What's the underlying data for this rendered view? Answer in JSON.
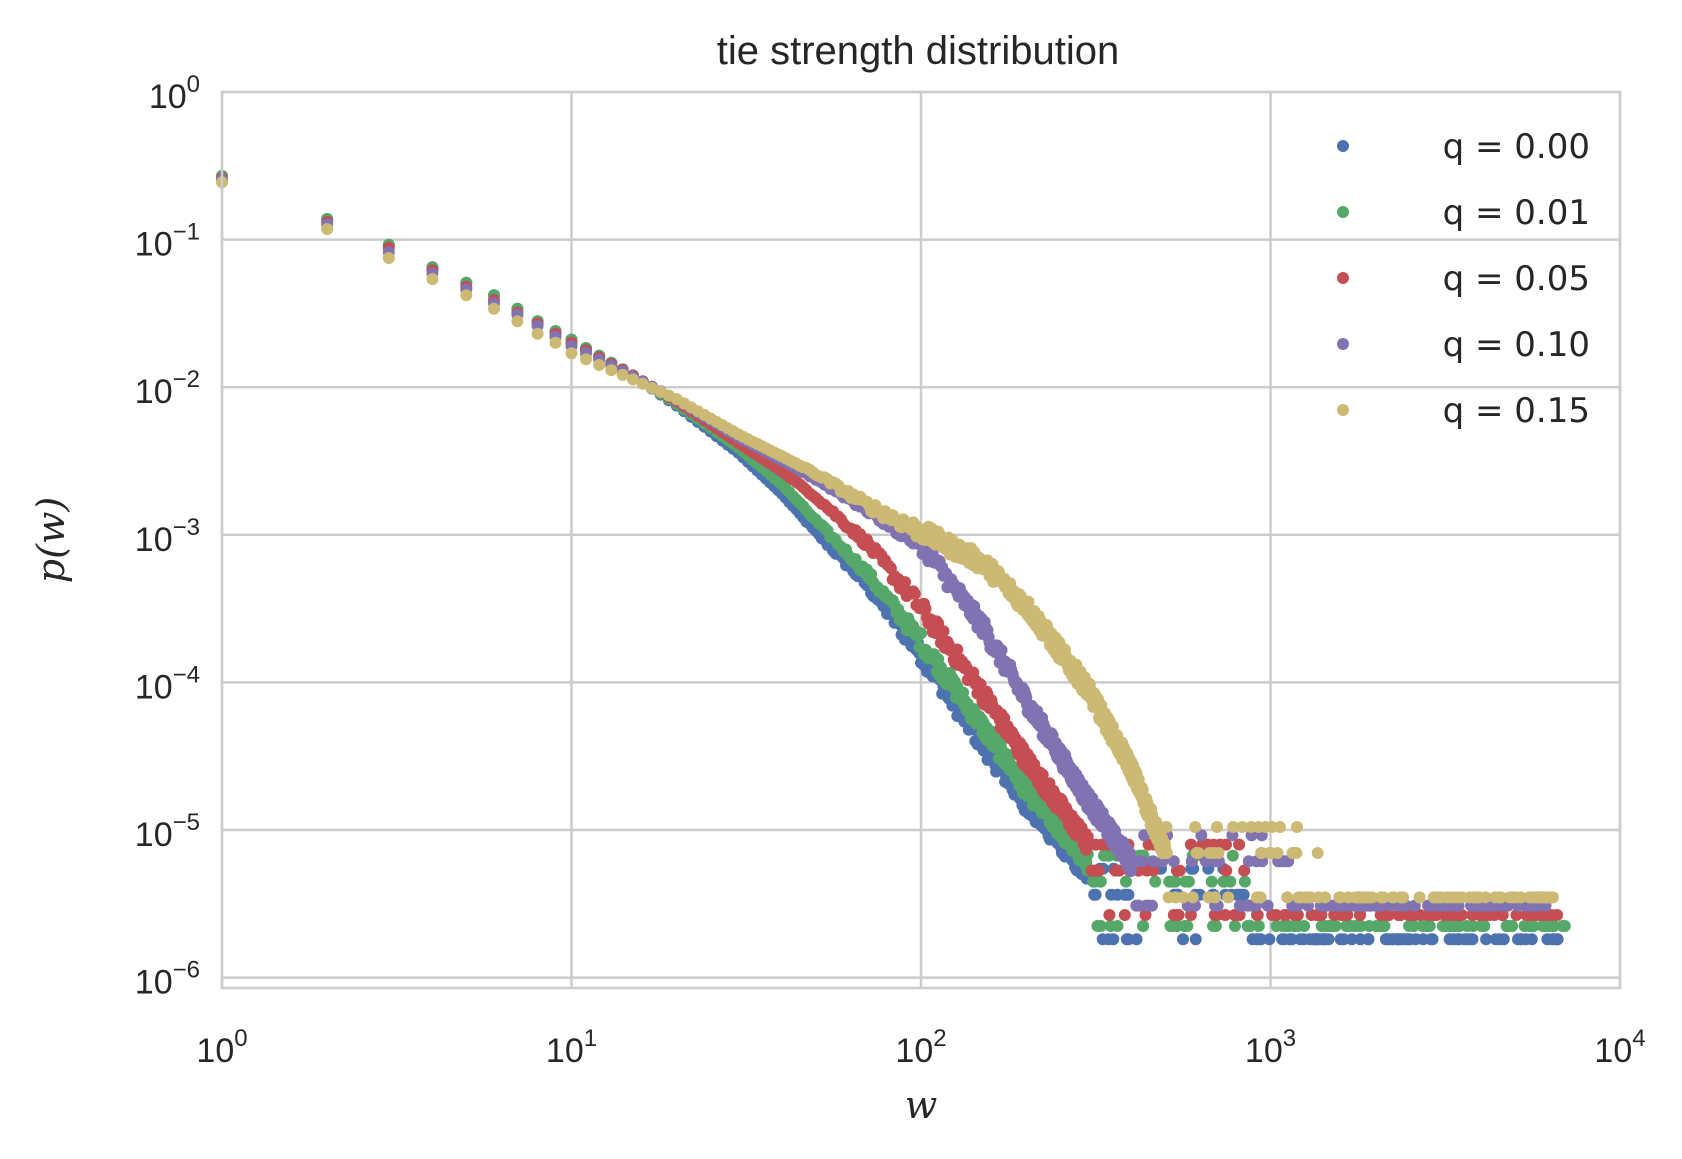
{
  "chart_data": {
    "type": "scatter",
    "title": "tie strength distribution",
    "xlabel": "w",
    "ylabel": "p(w)",
    "xscale": "log",
    "yscale": "log",
    "xlim": [
      1,
      10000
    ],
    "ylim": [
      8.5e-07,
      1
    ],
    "grid": true,
    "legend_position": "top-right",
    "x_ticks": [
      {
        "base": "10",
        "exp": "0"
      },
      {
        "base": "10",
        "exp": "1"
      },
      {
        "base": "10",
        "exp": "2"
      },
      {
        "base": "10",
        "exp": "3"
      },
      {
        "base": "10",
        "exp": "4"
      }
    ],
    "y_ticks": [
      {
        "base": "10",
        "exp": "0"
      },
      {
        "base": "10",
        "exp": "−1"
      },
      {
        "base": "10",
        "exp": "−2"
      },
      {
        "base": "10",
        "exp": "−3"
      },
      {
        "base": "10",
        "exp": "−4"
      },
      {
        "base": "10",
        "exp": "−5"
      },
      {
        "base": "10",
        "exp": "−6"
      }
    ],
    "series": [
      {
        "name": "q = 0.00",
        "color": "#4c72b0",
        "max_w": 7000,
        "points": [
          [
            1,
            0.27
          ],
          [
            2,
            0.138
          ],
          [
            3,
            0.092
          ],
          [
            4,
            0.065
          ],
          [
            5,
            0.051
          ],
          [
            6,
            0.042
          ],
          [
            7,
            0.034
          ],
          [
            8,
            0.028
          ],
          [
            9,
            0.024
          ],
          [
            10,
            0.021
          ],
          [
            15,
            0.012
          ],
          [
            20,
            0.0075
          ],
          [
            30,
            0.0036
          ],
          [
            40,
            0.0019
          ],
          [
            50,
            0.00105
          ],
          [
            70,
            0.00046
          ],
          [
            100,
            0.000155
          ],
          [
            150,
            3.8e-05
          ],
          [
            200,
            1.5e-05
          ],
          [
            300,
            5e-06
          ]
        ]
      },
      {
        "name": "q = 0.01",
        "color": "#55a868",
        "max_w": 8000,
        "points": [
          [
            1,
            0.27
          ],
          [
            2,
            0.138
          ],
          [
            3,
            0.092
          ],
          [
            4,
            0.065
          ],
          [
            5,
            0.051
          ],
          [
            6,
            0.042
          ],
          [
            7,
            0.034
          ],
          [
            8,
            0.028
          ],
          [
            9,
            0.024
          ],
          [
            10,
            0.021
          ],
          [
            15,
            0.012
          ],
          [
            20,
            0.0077
          ],
          [
            30,
            0.0039
          ],
          [
            40,
            0.0022
          ],
          [
            50,
            0.00125
          ],
          [
            70,
            0.00055
          ],
          [
            100,
            0.00019
          ],
          [
            150,
            5e-05
          ],
          [
            200,
            1.9e-05
          ],
          [
            300,
            6e-06
          ]
        ]
      },
      {
        "name": "q = 0.05",
        "color": "#c44e52",
        "max_w": 7000,
        "points": [
          [
            1,
            0.26
          ],
          [
            2,
            0.132
          ],
          [
            3,
            0.088
          ],
          [
            4,
            0.062
          ],
          [
            5,
            0.048
          ],
          [
            6,
            0.039
          ],
          [
            7,
            0.032
          ],
          [
            8,
            0.027
          ],
          [
            9,
            0.023
          ],
          [
            10,
            0.02
          ],
          [
            15,
            0.012
          ],
          [
            20,
            0.008
          ],
          [
            30,
            0.0042
          ],
          [
            40,
            0.0027
          ],
          [
            50,
            0.0018
          ],
          [
            70,
            0.00088
          ],
          [
            100,
            0.00032
          ],
          [
            150,
            8.5e-05
          ],
          [
            200,
            3e-05
          ],
          [
            300,
            8e-06
          ]
        ]
      },
      {
        "name": "q = 0.10",
        "color": "#8172b2",
        "max_w": 6500,
        "points": [
          [
            1,
            0.255
          ],
          [
            2,
            0.127
          ],
          [
            3,
            0.082
          ],
          [
            4,
            0.059
          ],
          [
            5,
            0.046
          ],
          [
            6,
            0.037
          ],
          [
            7,
            0.031
          ],
          [
            8,
            0.026
          ],
          [
            9,
            0.022
          ],
          [
            10,
            0.019
          ],
          [
            15,
            0.0118
          ],
          [
            20,
            0.0082
          ],
          [
            30,
            0.0046
          ],
          [
            40,
            0.0032
          ],
          [
            50,
            0.0024
          ],
          [
            70,
            0.0015
          ],
          [
            100,
            0.00088
          ],
          [
            150,
            0.00024
          ],
          [
            200,
            7.5e-05
          ],
          [
            300,
            1.6e-05
          ],
          [
            400,
            6e-06
          ]
        ]
      },
      {
        "name": "q = 0.15",
        "color": "#ccb974",
        "max_w": 6500,
        "points": [
          [
            1,
            0.245
          ],
          [
            2,
            0.118
          ],
          [
            3,
            0.075
          ],
          [
            4,
            0.054
          ],
          [
            5,
            0.042
          ],
          [
            6,
            0.034
          ],
          [
            7,
            0.028
          ],
          [
            8,
            0.023
          ],
          [
            9,
            0.02
          ],
          [
            10,
            0.017
          ],
          [
            15,
            0.0113
          ],
          [
            20,
            0.0083
          ],
          [
            30,
            0.0048
          ],
          [
            40,
            0.0034
          ],
          [
            50,
            0.0026
          ],
          [
            70,
            0.0016
          ],
          [
            100,
            0.00105
          ],
          [
            150,
            0.00065
          ],
          [
            200,
            0.00033
          ],
          [
            300,
            9e-05
          ],
          [
            400,
            2.6e-05
          ],
          [
            500,
            7e-06
          ]
        ]
      }
    ]
  }
}
